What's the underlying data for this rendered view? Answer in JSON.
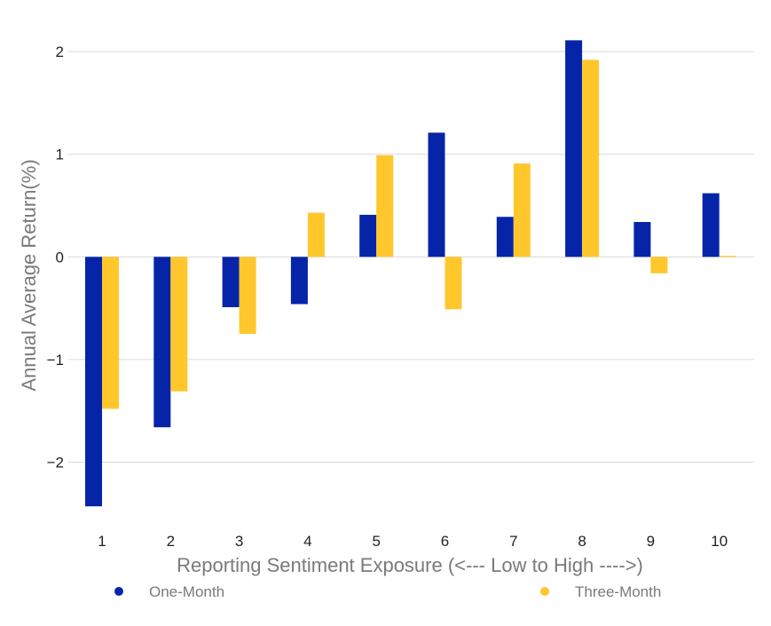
{
  "chart_data": {
    "type": "bar",
    "title": "",
    "xlabel": "Reporting Sentiment Exposure (<--- Low to High ---->)",
    "ylabel": "Annual Average Return(%)",
    "categories": [
      "1",
      "2",
      "3",
      "4",
      "5",
      "6",
      "7",
      "8",
      "9",
      "10"
    ],
    "ylim": [
      -2.5,
      2.2
    ],
    "yticks": [
      2,
      1,
      0,
      -1,
      -2
    ],
    "ytick_labels": [
      "2",
      "1",
      "0",
      "−1",
      "−2"
    ],
    "grid": true,
    "legend_position": "bottom",
    "series": [
      {
        "name": "One-Month",
        "color": "#0624A8",
        "values": [
          -2.43,
          -1.66,
          -0.49,
          -0.46,
          0.41,
          1.21,
          0.39,
          2.11,
          0.34,
          0.62
        ]
      },
      {
        "name": "Three-Month",
        "color": "#FFC72C",
        "values": [
          -1.48,
          -1.31,
          -0.75,
          0.43,
          0.99,
          -0.51,
          0.91,
          1.92,
          -0.16,
          0.01
        ]
      }
    ]
  }
}
